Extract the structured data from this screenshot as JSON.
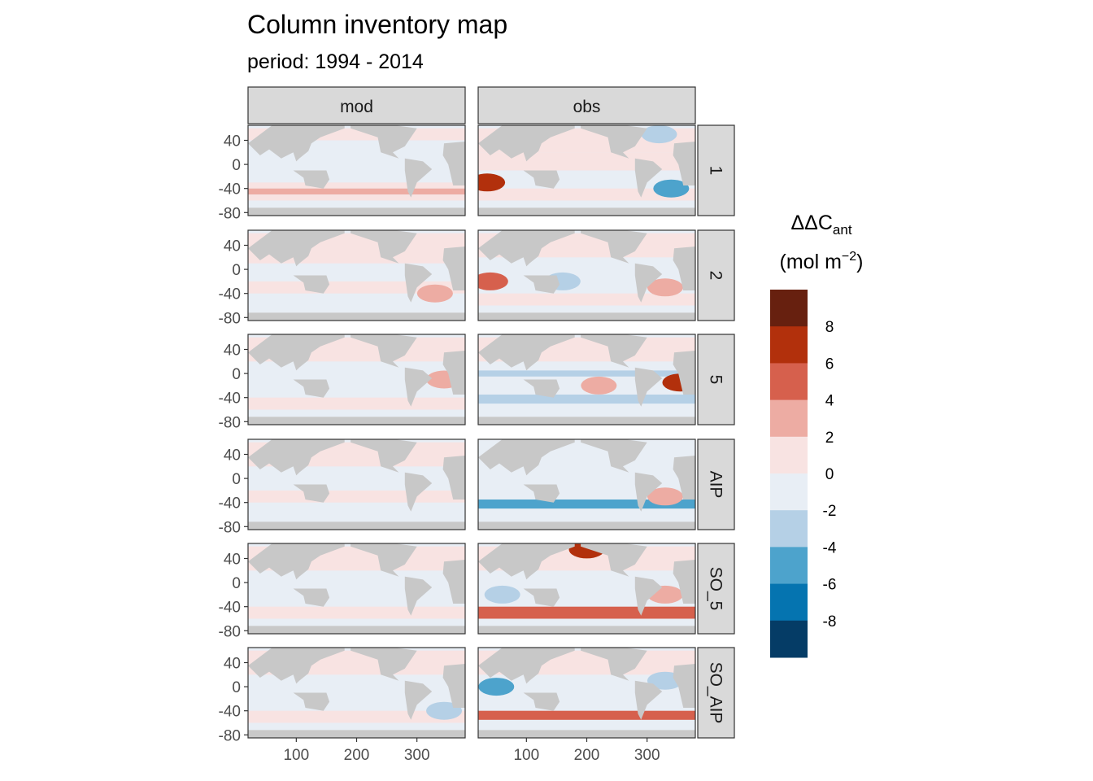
{
  "chart_data": {
    "type": "heatmap",
    "title": "Column inventory map",
    "subtitle": "period: 1994 - 2014",
    "columns": [
      "mod",
      "obs"
    ],
    "rows": [
      "1",
      "2",
      "5",
      "AIP",
      "SO_5",
      "SO_AIP"
    ],
    "x_ticks": [
      "100",
      "200",
      "300"
    ],
    "x_tick_values": [
      100,
      200,
      300
    ],
    "xlim": [
      20,
      380
    ],
    "y_ticks": [
      "40",
      "0",
      "-40",
      "-80"
    ],
    "y_tick_values": [
      40,
      0,
      -40,
      -80
    ],
    "ylim": [
      -85,
      65
    ],
    "legend": {
      "title_main": "ΔΔC",
      "title_sub": "ant",
      "unit_pre": "(mol m",
      "unit_sup": "−2",
      "unit_post": ")",
      "labels": [
        "8",
        "6",
        "4",
        "2",
        "0",
        "-2",
        "-4",
        "-6",
        "-8"
      ],
      "breaks": [
        8,
        6,
        4,
        2,
        0,
        -2,
        -4,
        -6,
        -8
      ],
      "colors": [
        "#67200f",
        "#b2300c",
        "#d6604d",
        "#edaca3",
        "#f8e3e2",
        "#e8eef5",
        "#b5d0e6",
        "#4da3cc",
        "#0574b0",
        "#053c66"
      ]
    },
    "land_color": "#c8c8c8",
    "panels": [
      {
        "row": "1",
        "col": "mod",
        "bands": [
          {
            "lat": [
              40,
              60
            ],
            "value": 1
          },
          {
            "lat": [
              -30,
              -40
            ],
            "value": 1.5
          },
          {
            "lat": [
              -40,
              -50
            ],
            "value": 3
          },
          {
            "lat": [
              -50,
              -60
            ],
            "value": 1.5
          }
        ],
        "spots": []
      },
      {
        "row": "1",
        "col": "obs",
        "bands": [
          {
            "lat": [
              20,
              60
            ],
            "value": 1.5
          },
          {
            "lat": [
              -10,
              20
            ],
            "value": 0.5
          },
          {
            "lat": [
              -40,
              -60
            ],
            "value": 1.5
          }
        ],
        "spots": [
          {
            "lon": 35,
            "lat": -30,
            "value": 6
          },
          {
            "lon": 340,
            "lat": -40,
            "value": -5
          },
          {
            "lon": 320,
            "lat": 50,
            "value": -3
          }
        ]
      },
      {
        "row": "2",
        "col": "mod",
        "bands": [
          {
            "lat": [
              10,
              60
            ],
            "value": 0.5
          },
          {
            "lat": [
              -40,
              -55
            ],
            "value": -2
          },
          {
            "lat": [
              -20,
              -40
            ],
            "value": 0.5
          }
        ],
        "spots": [
          {
            "lon": 330,
            "lat": -40,
            "value": 2
          }
        ]
      },
      {
        "row": "2",
        "col": "obs",
        "bands": [
          {
            "lat": [
              20,
              60
            ],
            "value": 0.5
          },
          {
            "lat": [
              -40,
              -60
            ],
            "value": 1.5
          }
        ],
        "spots": [
          {
            "lon": 40,
            "lat": -20,
            "value": 5
          },
          {
            "lon": 160,
            "lat": -20,
            "value": -2.5
          },
          {
            "lon": 330,
            "lat": -30,
            "value": 3
          }
        ]
      },
      {
        "row": "5",
        "col": "mod",
        "bands": [
          {
            "lat": [
              20,
              60
            ],
            "value": 0.5
          },
          {
            "lat": [
              -5,
              5
            ],
            "value": -2
          },
          {
            "lat": [
              -40,
              -60
            ],
            "value": 1
          }
        ],
        "spots": [
          {
            "lon": 345,
            "lat": -10,
            "value": 3
          }
        ]
      },
      {
        "row": "5",
        "col": "obs",
        "bands": [
          {
            "lat": [
              20,
              60
            ],
            "value": 1
          },
          {
            "lat": [
              -5,
              5
            ],
            "value": -2.5
          },
          {
            "lat": [
              -35,
              -50
            ],
            "value": -4
          }
        ],
        "spots": [
          {
            "lon": 220,
            "lat": -20,
            "value": 2
          },
          {
            "lon": 355,
            "lat": -15,
            "value": 6
          }
        ]
      },
      {
        "row": "AIP",
        "col": "mod",
        "bands": [
          {
            "lat": [
              20,
              60
            ],
            "value": 0.5
          },
          {
            "lat": [
              -40,
              -60
            ],
            "value": -0.5
          },
          {
            "lat": [
              -20,
              -40
            ],
            "value": 0.5
          }
        ],
        "spots": []
      },
      {
        "row": "AIP",
        "col": "obs",
        "bands": [
          {
            "lat": [
              20,
              60
            ],
            "value": -0.5
          },
          {
            "lat": [
              -35,
              -50
            ],
            "value": -5
          }
        ],
        "spots": [
          {
            "lon": 330,
            "lat": -30,
            "value": 2
          }
        ]
      },
      {
        "row": "SO_5",
        "col": "mod",
        "bands": [
          {
            "lat": [
              20,
              60
            ],
            "value": 0.5
          },
          {
            "lat": [
              -36,
              -40
            ],
            "value": -2
          },
          {
            "lat": [
              -40,
              -60
            ],
            "value": 1
          }
        ],
        "spots": []
      },
      {
        "row": "SO_5",
        "col": "obs",
        "bands": [
          {
            "lat": [
              20,
              60
            ],
            "value": 1
          },
          {
            "lat": [
              -40,
              -60
            ],
            "value": 4
          }
        ],
        "spots": [
          {
            "lon": 60,
            "lat": -20,
            "value": -4
          },
          {
            "lon": 200,
            "lat": 55,
            "value": 6
          },
          {
            "lon": 330,
            "lat": -20,
            "value": 2
          }
        ]
      },
      {
        "row": "SO_AIP",
        "col": "mod",
        "bands": [
          {
            "lat": [
              20,
              60
            ],
            "value": 0.5
          },
          {
            "lat": [
              -36,
              -42
            ],
            "value": -1.5
          },
          {
            "lat": [
              -40,
              -60
            ],
            "value": 0.5
          }
        ],
        "spots": [
          {
            "lon": 345,
            "lat": -40,
            "value": -2.5
          }
        ]
      },
      {
        "row": "SO_AIP",
        "col": "obs",
        "bands": [
          {
            "lat": [
              20,
              60
            ],
            "value": 0.5
          },
          {
            "lat": [
              -40,
              -55
            ],
            "value": 5
          }
        ],
        "spots": [
          {
            "lon": 50,
            "lat": 0,
            "value": -5
          },
          {
            "lon": 330,
            "lat": 10,
            "value": -2.5
          }
        ]
      }
    ]
  }
}
